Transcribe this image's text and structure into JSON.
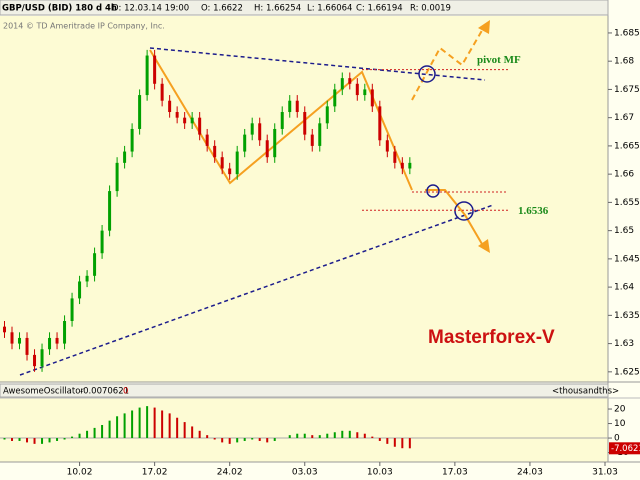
{
  "chart_data": {
    "type": "candlestick",
    "header": {
      "symbol": "GBP/USD (BID) 180 d 4h",
      "date": "D: 12.03.14 19:00",
      "open": "O: 1.6622",
      "high": "H: 1.66254",
      "low": "L: 1.66064",
      "close": "C: 1.66194",
      "range": "R: 0.0019"
    },
    "copyright": "2014 © TD Ameritrade IP Company, Inc.",
    "watermark": "Masterforex-V",
    "up_color": "#00a000",
    "down_color": "#cc0000",
    "xlim": [
      -0.6,
      80.4
    ],
    "xticks": [
      {
        "value": 10,
        "label": "10.02"
      },
      {
        "value": 20,
        "label": "17.02"
      },
      {
        "value": 30,
        "label": "24.02"
      },
      {
        "value": 40,
        "label": "03.03"
      },
      {
        "value": 50,
        "label": "10.03"
      },
      {
        "value": 60,
        "label": "17.03"
      },
      {
        "value": 70,
        "label": "24.03"
      },
      {
        "value": 80,
        "label": "31.03"
      }
    ],
    "ylim": [
      1.6232,
      1.688
    ],
    "yticks": [
      1.625,
      1.63,
      1.635,
      1.64,
      1.645,
      1.65,
      1.655,
      1.66,
      1.665,
      1.67,
      1.675,
      1.68,
      1.685
    ],
    "open": [
      1.633,
      1.632,
      1.63,
      1.631,
      1.628,
      1.626,
      1.629,
      1.631,
      1.63,
      1.634,
      1.638,
      1.641,
      1.642,
      1.646,
      1.65,
      1.657,
      1.662,
      1.664,
      1.668,
      1.674,
      1.681,
      1.676,
      1.673,
      1.671,
      1.67,
      1.669,
      1.67,
      1.667,
      1.665,
      1.663,
      1.661,
      1.66,
      1.664,
      1.667,
      1.669,
      1.666,
      1.663,
      1.668,
      1.671,
      1.673,
      1.671,
      1.667,
      1.665,
      1.669,
      1.672,
      1.675,
      1.677,
      1.676,
      1.674,
      1.675,
      1.672,
      1.666,
      1.664,
      1.662,
      1.661
    ],
    "high": [
      1.634,
      1.633,
      1.632,
      1.632,
      1.629,
      1.63,
      1.632,
      1.632,
      1.635,
      1.639,
      1.642,
      1.643,
      1.647,
      1.651,
      1.658,
      1.663,
      1.665,
      1.669,
      1.675,
      1.682,
      1.682,
      1.677,
      1.674,
      1.672,
      1.671,
      1.671,
      1.671,
      1.668,
      1.666,
      1.664,
      1.662,
      1.665,
      1.668,
      1.67,
      1.67,
      1.667,
      1.669,
      1.672,
      1.674,
      1.674,
      1.672,
      1.668,
      1.67,
      1.673,
      1.676,
      1.678,
      1.678,
      1.677,
      1.676,
      1.676,
      1.673,
      1.667,
      1.665,
      1.663,
      1.663
    ],
    "low": [
      1.631,
      1.629,
      1.629,
      1.627,
      1.625,
      1.625,
      1.628,
      1.629,
      1.629,
      1.633,
      1.637,
      1.64,
      1.641,
      1.645,
      1.649,
      1.656,
      1.661,
      1.663,
      1.667,
      1.673,
      1.675,
      1.672,
      1.67,
      1.669,
      1.668,
      1.668,
      1.666,
      1.664,
      1.662,
      1.66,
      1.659,
      1.659,
      1.663,
      1.666,
      1.665,
      1.662,
      1.662,
      1.667,
      1.67,
      1.67,
      1.666,
      1.664,
      1.664,
      1.668,
      1.671,
      1.674,
      1.675,
      1.673,
      1.673,
      1.671,
      1.665,
      1.663,
      1.661,
      1.66,
      1.66
    ],
    "close": [
      1.632,
      1.63,
      1.631,
      1.628,
      1.626,
      1.629,
      1.631,
      1.63,
      1.634,
      1.638,
      1.641,
      1.642,
      1.646,
      1.65,
      1.657,
      1.662,
      1.664,
      1.668,
      1.674,
      1.681,
      1.676,
      1.673,
      1.671,
      1.67,
      1.669,
      1.67,
      1.667,
      1.665,
      1.663,
      1.661,
      1.66,
      1.664,
      1.667,
      1.669,
      1.666,
      1.663,
      1.668,
      1.671,
      1.673,
      1.671,
      1.667,
      1.665,
      1.669,
      1.672,
      1.675,
      1.677,
      1.676,
      1.674,
      1.675,
      1.672,
      1.666,
      1.664,
      1.662,
      1.661,
      1.662
    ],
    "levels": [
      {
        "label": "pivot MF",
        "value": 1.6785
      },
      {
        "label": "1.6536",
        "value": 1.6536
      }
    ],
    "level_color": "#d02020",
    "oscillator": {
      "name": "AwesomeOscillator",
      "header_value": "-0.0070621",
      "param": "0",
      "units": "<thousandths>",
      "ylim": [
        -16.5,
        27.6
      ],
      "yticks": [
        -10,
        0,
        10,
        20
      ],
      "values": [
        -1,
        -2,
        -2,
        -3,
        -4,
        -4,
        -3,
        -2,
        -1,
        1,
        3,
        5,
        7,
        9,
        12,
        15,
        17,
        19,
        21,
        22,
        21,
        19,
        17,
        14,
        11,
        8,
        5,
        2,
        -1,
        -3,
        -4,
        -3,
        -2,
        -1,
        -2,
        -3,
        -2,
        0,
        2,
        3,
        3,
        2,
        2,
        3,
        4,
        5,
        5,
        4,
        3,
        1,
        -2,
        -4,
        -6,
        -7,
        -7.0621
      ],
      "last_label": "-7.0621",
      "up_color": "#00a000",
      "down_color": "#cc0000"
    }
  }
}
